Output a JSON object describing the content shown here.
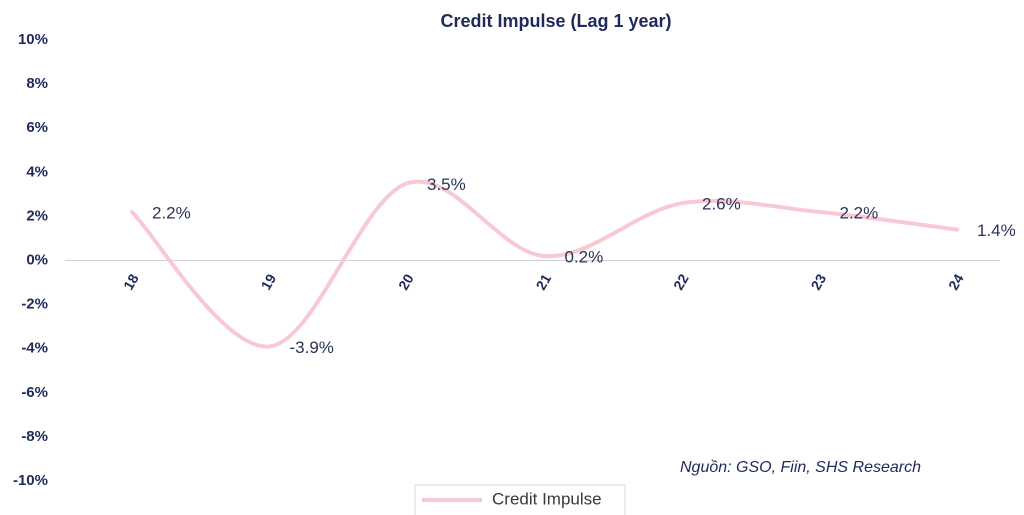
{
  "chart_data": {
    "type": "line",
    "title": "Credit Impulse (Lag 1 year)",
    "categories": [
      "18",
      "19",
      "20",
      "21",
      "22",
      "23",
      "24"
    ],
    "series": [
      {
        "name": "Credit Impulse",
        "color": "#f7c9d3",
        "values": [
          2.2,
          -3.9,
          3.5,
          0.2,
          2.6,
          2.2,
          1.4
        ],
        "value_labels": [
          "2.2%",
          "-3.9%",
          "3.5%",
          "0.2%",
          "2.6%",
          "2.2%",
          "1.4%"
        ]
      }
    ],
    "ylim": [
      -10,
      10
    ],
    "yticks": [
      {
        "value": -10,
        "label": "-10%"
      },
      {
        "value": -8,
        "label": "-8%"
      },
      {
        "value": -6,
        "label": "-6%"
      },
      {
        "value": -4,
        "label": "-4%"
      },
      {
        "value": -2,
        "label": "-2%"
      },
      {
        "value": 0,
        "label": "0%"
      },
      {
        "value": 2,
        "label": "2%"
      },
      {
        "value": 4,
        "label": "4%"
      },
      {
        "value": 6,
        "label": "6%"
      },
      {
        "value": 8,
        "label": "8%"
      },
      {
        "value": 10,
        "label": "10%"
      }
    ],
    "annotation": "Nguồn: GSO, Fiin, SHS Research",
    "smooth": true,
    "legend": "bottom"
  }
}
